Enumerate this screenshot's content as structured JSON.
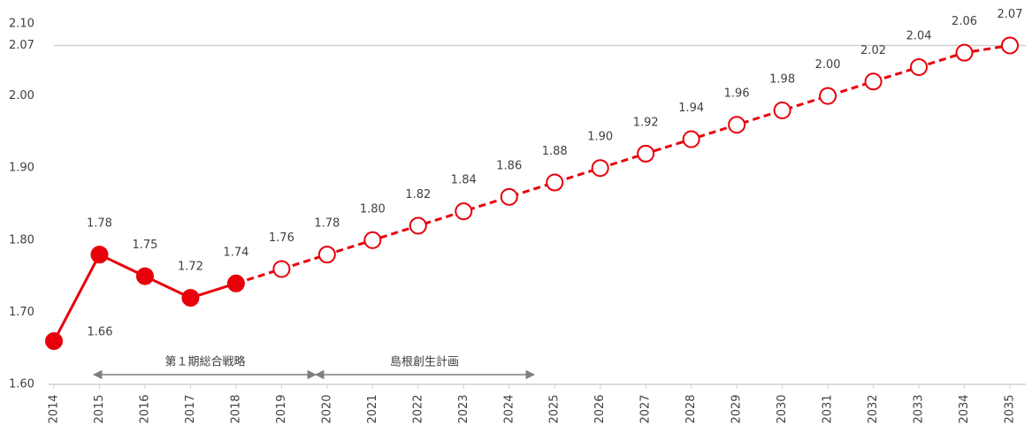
{
  "chart_data": {
    "type": "line",
    "x": [
      2014,
      2015,
      2016,
      2017,
      2018,
      2019,
      2020,
      2021,
      2022,
      2023,
      2024,
      2025,
      2026,
      2027,
      2028,
      2029,
      2030,
      2031,
      2032,
      2033,
      2034,
      2035
    ],
    "series": [
      {
        "color": "#e8000b",
        "style": "solid",
        "values": [
          1.66,
          1.78,
          1.75,
          1.72,
          1.74,
          null,
          null,
          null,
          null,
          null,
          null,
          null,
          null,
          null,
          null,
          null,
          null,
          null,
          null,
          null,
          null,
          null
        ],
        "value_labels": [
          "1.66",
          "1.78",
          "1.75",
          "1.72",
          "1.74",
          null,
          null,
          null,
          null,
          null,
          null,
          null,
          null,
          null,
          null,
          null,
          null,
          null,
          null,
          null,
          null,
          null
        ]
      },
      {
        "color": "#e8000b",
        "style": "dashed",
        "values": [
          null,
          null,
          null,
          null,
          null,
          1.76,
          1.78,
          1.8,
          1.82,
          1.84,
          1.86,
          1.88,
          1.9,
          1.92,
          1.94,
          1.96,
          1.98,
          2.0,
          2.02,
          2.04,
          2.06,
          2.07
        ],
        "value_labels": [
          null,
          null,
          null,
          null,
          null,
          "1.76",
          "1.78",
          "1.80",
          "1.82",
          "1.84",
          "1.86",
          "1.88",
          "1.90",
          "1.92",
          "1.94",
          "1.96",
          "1.98",
          "2.00",
          "2.02",
          "2.04",
          "2.06",
          "2.07"
        ]
      }
    ],
    "xlim": [
      2014,
      2035
    ],
    "ylim": [
      1.6,
      2.1
    ],
    "yticks": [
      {
        "value": 1.6,
        "label": "1.60"
      },
      {
        "value": 1.7,
        "label": "1.70"
      },
      {
        "value": 1.8,
        "label": "1.80"
      },
      {
        "value": 1.9,
        "label": "1.90"
      },
      {
        "value": 2.0,
        "label": "2.00"
      },
      {
        "value": 2.07,
        "label": "2.07"
      },
      {
        "value": 2.1,
        "label": "2.10"
      }
    ],
    "grid_at": [
      2.07
    ],
    "annotations": [
      "第１期総合戦略",
      "島根創生計画"
    ]
  }
}
